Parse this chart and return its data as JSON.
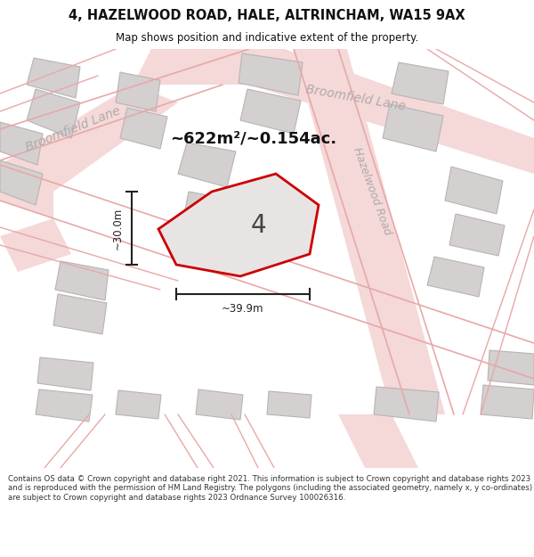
{
  "title": "4, HAZELWOOD ROAD, HALE, ALTRINCHAM, WA15 9AX",
  "subtitle": "Map shows position and indicative extent of the property.",
  "area_label": "~622m²/~0.154ac.",
  "width_label": "~39.9m",
  "height_label": "~30.0m",
  "plot_number": "4",
  "footer": "Contains OS data © Crown copyright and database right 2021. This information is subject to Crown copyright and database rights 2023 and is reproduced with the permission of HM Land Registry. The polygons (including the associated geometry, namely x, y co-ordinates) are subject to Crown copyright and database rights 2023 Ordnance Survey 100026316.",
  "map_bg": "#eeecec",
  "road_fill_color": "#f5d8d8",
  "road_line_color": "#e8a8a8",
  "building_face": "#d4d0d0",
  "building_edge": "#b8b4b4",
  "plot_face": "#e8e4e4",
  "plot_edge": "#cc0000",
  "street_label_color": "#b0aaaa",
  "dim_color": "#222222",
  "title_color": "#111111",
  "footer_color": "#333333",
  "white": "#ffffff"
}
